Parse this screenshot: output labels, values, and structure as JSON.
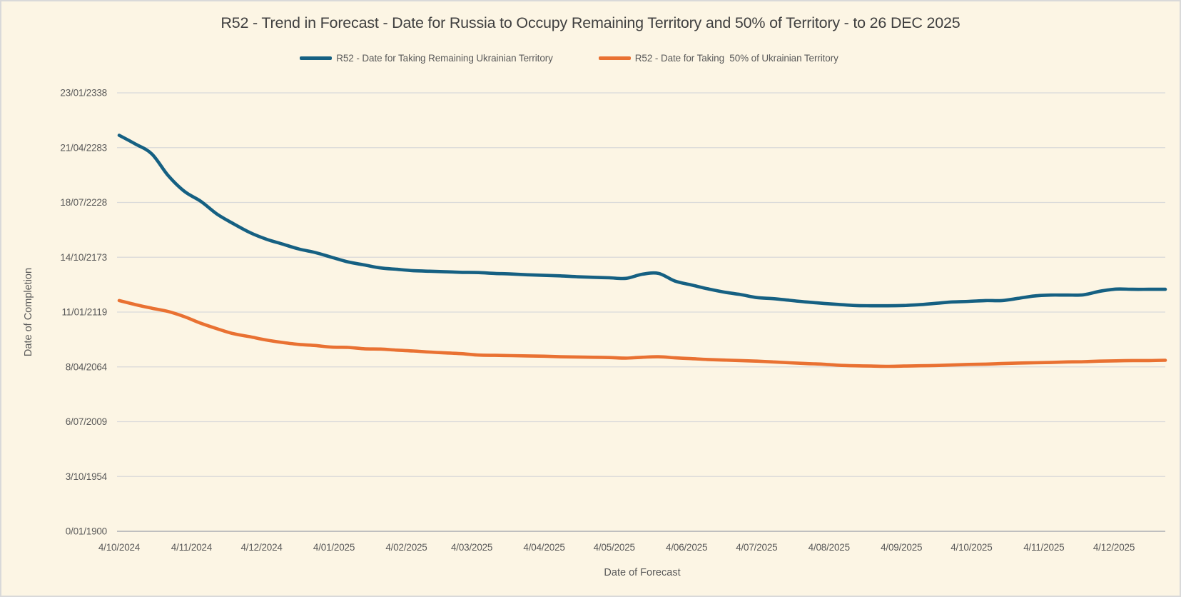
{
  "window": {
    "background_color": "#FCF5E4",
    "border_color": "#D9D9D9"
  },
  "chart": {
    "title": "R52 - Trend in Forecast - Date for Russia to Occupy Remaining Territory and 50% of Territory - to 26 DEC 2025",
    "x_axis_title": "Date of Forecast",
    "y_axis_title": "Date of Completion",
    "title_color": "#404040",
    "text_color": "#595959",
    "gridline_color": "#D9D9D9",
    "axis_line_color": "#BFBFBF"
  },
  "legend": {
    "items": [
      {
        "label": "R52 - Date for Taking Remaining Ukrainian Territory",
        "color": "#156082"
      },
      {
        "label": "R52 - Date for Taking  50% of Ukrainian Territory",
        "color": "#E97132"
      }
    ]
  },
  "chart_data": {
    "type": "line",
    "title": "R52 - Trend in Forecast - Date for Russia to Occupy Remaining Territory and 50% of Territory - to 26 DEC 2025",
    "xlabel": "Date of Forecast",
    "ylabel": "Date of Completion",
    "grid": "horizontal",
    "legend_position": "top",
    "x_start_date": "2024-10-04",
    "x_end_date": "2025-12-26",
    "x_step_days": 7,
    "x_total_days": 448,
    "x_tick_labels": [
      "4/10/2024",
      "4/11/2024",
      "4/12/2024",
      "4/01/2025",
      "4/02/2025",
      "4/03/2025",
      "4/04/2025",
      "4/05/2025",
      "4/06/2025",
      "4/07/2025",
      "4/08/2025",
      "4/09/2025",
      "4/10/2025",
      "4/11/2025",
      "4/12/2025"
    ],
    "x_tick_days": [
      0,
      31,
      61,
      92,
      123,
      151,
      182,
      212,
      243,
      273,
      304,
      335,
      365,
      396,
      426
    ],
    "y_tick_labels": [
      "0/01/1900",
      "3/10/1954",
      "6/07/2009",
      "8/04/2064",
      "11/01/2119",
      "14/10/2173",
      "18/07/2228",
      "21/04/2283",
      "23/01/2338"
    ],
    "y_tick_values": [
      0,
      20000,
      40000,
      60000,
      80000,
      100000,
      120000,
      140000,
      160000
    ],
    "ylim": [
      0,
      160000
    ],
    "y_unit": "excel-date-serial",
    "series": [
      {
        "name": "R52 - Date for Taking Remaining Ukrainian Territory",
        "color": "#156082",
        "values": [
          144500,
          141300,
          137700,
          129800,
          124000,
          120400,
          115700,
          112200,
          109000,
          106600,
          104800,
          103000,
          101700,
          100000,
          98300,
          97200,
          96100,
          95600,
          95100,
          94900,
          94700,
          94500,
          94400,
          94100,
          93900,
          93600,
          93400,
          93200,
          92900,
          92700,
          92500,
          92300,
          93800,
          94100,
          91300,
          89900,
          88500,
          87300,
          86400,
          85300,
          84900,
          84300,
          83700,
          83200,
          82800,
          82400,
          82300,
          82300,
          82400,
          82700,
          83200,
          83700,
          83900,
          84200,
          84200,
          85000,
          85900,
          86200,
          86200,
          86300,
          87600,
          88400,
          88300,
          88300,
          88300
        ]
      },
      {
        "name": "R52 - Date for Taking  50% of Ukrainian Territory",
        "color": "#E97132",
        "values": [
          84200,
          82700,
          81400,
          80200,
          78300,
          75900,
          73900,
          72100,
          71000,
          69800,
          68900,
          68200,
          67800,
          67200,
          67100,
          66600,
          66500,
          66100,
          65800,
          65400,
          65100,
          64800,
          64300,
          64200,
          64100,
          64000,
          63900,
          63700,
          63600,
          63500,
          63400,
          63200,
          63500,
          63700,
          63300,
          63000,
          62700,
          62500,
          62300,
          62100,
          61800,
          61500,
          61200,
          61000,
          60600,
          60400,
          60300,
          60200,
          60300,
          60400,
          60500,
          60700,
          60900,
          61000,
          61200,
          61400,
          61500,
          61600,
          61800,
          61900,
          62100,
          62200,
          62300,
          62300,
          62400
        ]
      }
    ]
  }
}
